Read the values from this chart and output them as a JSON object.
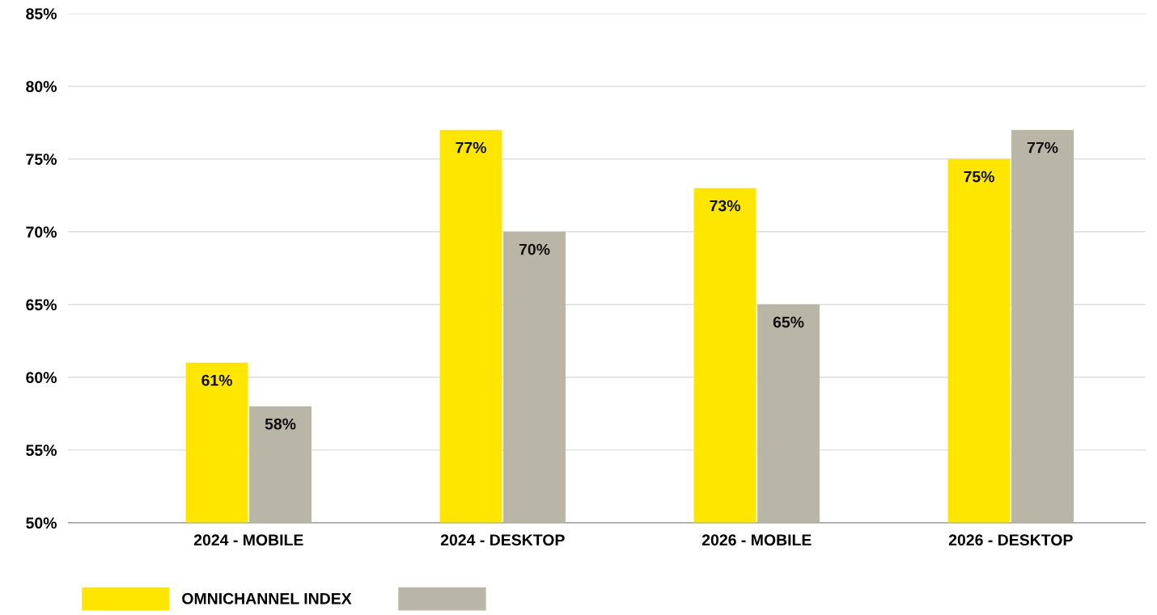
{
  "chart_data": {
    "type": "bar",
    "categories": [
      "2024 - MOBILE",
      "2024 - DESKTOP",
      "2026 - MOBILE",
      "2026 - DESKTOP"
    ],
    "series": [
      {
        "name": "OMNICHANNEL INDEX",
        "color": "#ffe600",
        "values": [
          61,
          77,
          73,
          75
        ],
        "value_labels": [
          "61%",
          "77%",
          "73%",
          "75%"
        ]
      },
      {
        "color": "#b9b6a7",
        "values": [
          58,
          70,
          65,
          77
        ],
        "value_labels": [
          "58%",
          "70%",
          "65%",
          "77%"
        ]
      }
    ],
    "ylim": [
      50,
      85
    ],
    "yticks": [
      {
        "value": 50,
        "label": "50%"
      },
      {
        "value": 55,
        "label": "55%"
      },
      {
        "value": 60,
        "label": "60%"
      },
      {
        "value": 65,
        "label": "65%"
      },
      {
        "value": 70,
        "label": "70%"
      },
      {
        "value": 75,
        "label": "75%"
      },
      {
        "value": 80,
        "label": "80%"
      },
      {
        "value": 85,
        "label": "85%"
      }
    ],
    "grid": "y",
    "legend": "bottom left"
  }
}
